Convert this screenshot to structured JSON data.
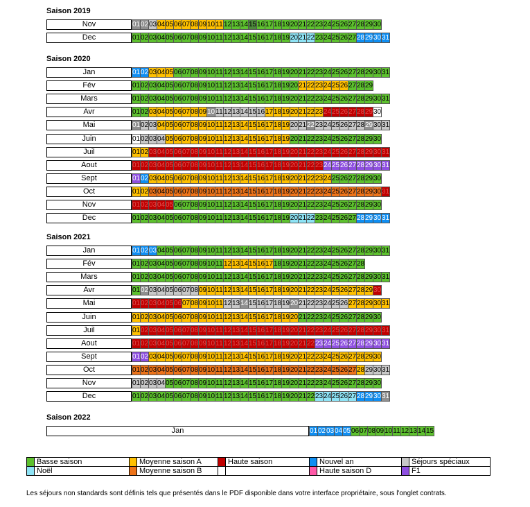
{
  "colors": {
    "B": "#5dc12e",
    "BD": "#4d8a3c",
    "G": "#8f8f8f",
    "S": "#c8c8c8",
    "A": "#ffc000",
    "O": "#ed7319",
    "H": "#c00000",
    "HD": "#a01010",
    "N": "#0f8ef2",
    "L": "#8ee3f5",
    "P": "#8e4fe0",
    "D": "#ff5aa8",
    "W": "#ffffff"
  },
  "seasons": [
    {
      "title": "Saison 2019",
      "months": [
        {
          "name": "Nov",
          "start": 1,
          "cells": "G G S A A A A A A A A B B B BD B B B B B B B B B B B B B B B"
        },
        {
          "name": "Dec",
          "start": 1,
          "cells": "B B B B B B B B B B B B B B B B B B B L L L B B B B B N N N N"
        }
      ]
    },
    {
      "title": "Saison 2020",
      "months": [
        {
          "name": "Jan",
          "start": 1,
          "cells": "N N A A A B B B B B B B B B B B B B B B B B B B B B B B B B B"
        },
        {
          "name": "Fév",
          "start": 1,
          "cells": "B B B B B B B B B B B B B B B B B B B B A A A A A A B B B"
        },
        {
          "name": "Mars",
          "start": 1,
          "cells": "B B B B B B B B B B B B B B B B B B B B B B B B B B B B B B B"
        },
        {
          "name": "Avr",
          "start": 1,
          "cells": "B B A A A A A A A G S S S S S S A A A A A A A H H H H H H W"
        },
        {
          "name": "Mai",
          "start": 1,
          "cells": "G S S A A A A A A A A A A A A A A A A S S G S S S S S S G S S"
        },
        {
          "name": "Juin",
          "start": 1,
          "cells": "W S S S A A A A A A A A A A A A A A A B B B B B B B B B B B"
        },
        {
          "name": "Juil",
          "start": 1,
          "cells": "A A H H H H H H H H H H H H H H H H H H H H H H H H H H H H H"
        },
        {
          "name": "Aout",
          "start": 1,
          "cells": "H H H H H H H H H H H H H H H H H H H H H H H P P P P P P P P"
        },
        {
          "name": "Sept",
          "start": 1,
          "cells": "P N A A A A A A A A A A A A A A A A A A A A A A B B B B B B"
        },
        {
          "name": "Oct",
          "start": 1,
          "cells": "A A O O O O O O O O O O O O O O O O O O O O O O O O O O O O H"
        },
        {
          "name": "Nov",
          "start": 1,
          "cells": "H H H H H B B B B B B B B B B B B B B B B B B B B B B B B B"
        },
        {
          "name": "Dec",
          "start": 1,
          "cells": "B B B B B B B B B B B B B B B B B B B L L L B B B B B N N N N"
        }
      ]
    },
    {
      "title": "Saison 2021",
      "months": [
        {
          "name": "Jan",
          "start": 1,
          "cells": "N N N B B B B B B B B B B B B B B B B B B B B B B B B B B B B"
        },
        {
          "name": "Fév",
          "start": 1,
          "cells": "B B B B B B B B B B B A A A A A A B B B B B B B B B B B"
        },
        {
          "name": "Mars",
          "start": 1,
          "cells": "B B B B B B B B B B B B B B B B B B B B B B B B B B B B B B B"
        },
        {
          "name": "Avr",
          "start": 1,
          "cells": "B G S S S S S S A A A A A A A A A A A A A A A A A A A A A H"
        },
        {
          "name": "Mai",
          "start": 1,
          "cells": "H H H H H H A A A A A S S G S S S S S G S S S S S S A A A A A"
        },
        {
          "name": "Juin",
          "start": 1,
          "cells": "A A A A A A A A A A A A A A A A A A A A B B B B B B B B B B"
        },
        {
          "name": "Juil",
          "start": 1,
          "cells": "A H H H H H H H H H H H H H H H H H H H H H H H H H H H H H H"
        },
        {
          "name": "Aout",
          "start": 1,
          "cells": "H H H H H H H H H H H H H H H H H H H H H H P P P P P P P P P"
        },
        {
          "name": "Sept",
          "start": 1,
          "cells": "P P A A A A A A A A A A A A A A A A A A A A A A A A A A A A"
        },
        {
          "name": "Oct",
          "start": 1,
          "cells": "O O O O O O O O O O O O O O O O O O O O O O O O O O O A S S S"
        },
        {
          "name": "Nov",
          "start": 1,
          "cells": "S S S S B B B B B B B B B B B B B B B B B B B B B B B B B B"
        },
        {
          "name": "Dec",
          "start": 1,
          "cells": "B B B B B B B B B B B B B B B B B B B B B B L L L L L N N N G"
        }
      ]
    },
    {
      "title": "Saison 2022",
      "months": [
        {
          "name": "Jan",
          "start": 1,
          "cells": "N N N N N B B B B B B B B B B"
        }
      ]
    }
  ],
  "legend": {
    "row1": [
      {
        "label": "Basse saison",
        "color": "B"
      },
      {
        "label": "Moyenne saison A",
        "color": "A"
      },
      {
        "label": "Haute saison",
        "color": "H"
      },
      {
        "label": "Nouvel an",
        "color": "N"
      },
      {
        "label": "Séjours spéciaux",
        "color": "S"
      }
    ],
    "row2": [
      {
        "label": "Noël",
        "color": "L"
      },
      {
        "label": "Moyenne saison B",
        "color": "O"
      },
      {
        "label": "",
        "color": "W"
      },
      {
        "label": "Haute saison D",
        "color": "D"
      },
      {
        "label": "F1",
        "color": "P"
      }
    ]
  },
  "footnote": "Les séjours non standards sont définis tels que présentés dans le PDF disponible dans votre interface propriétaire, sous l'onglet contrats."
}
